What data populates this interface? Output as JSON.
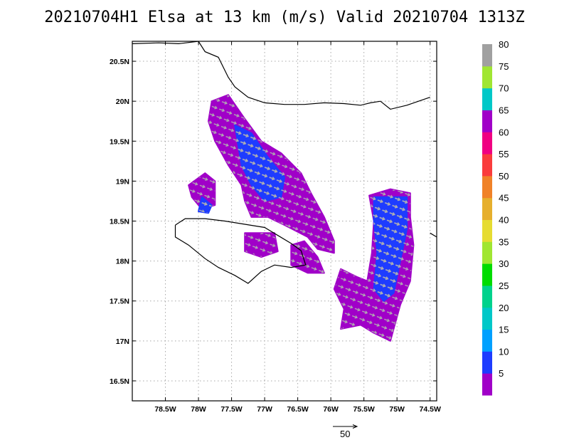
{
  "title": "20210704H1 Elsa at 13 km (m/s) Valid 20210704 1313Z",
  "map": {
    "lon_range": [
      -79.0,
      -74.4
    ],
    "lat_range": [
      16.25,
      20.75
    ],
    "lon_ticks": [
      {
        "value": -78.5,
        "label": "78.5W"
      },
      {
        "value": -78.0,
        "label": "78W"
      },
      {
        "value": -77.5,
        "label": "77.5W"
      },
      {
        "value": -77.0,
        "label": "77W"
      },
      {
        "value": -76.5,
        "label": "76.5W"
      },
      {
        "value": -76.0,
        "label": "76W"
      },
      {
        "value": -75.5,
        "label": "75.5W"
      },
      {
        "value": -75.0,
        "label": "75W"
      },
      {
        "value": -74.5,
        "label": "74.5W"
      }
    ],
    "lat_ticks": [
      {
        "value": 20.5,
        "label": "20.5N"
      },
      {
        "value": 20.0,
        "label": "20N"
      },
      {
        "value": 19.5,
        "label": "19.5N"
      },
      {
        "value": 19.0,
        "label": "19N"
      },
      {
        "value": 18.5,
        "label": "18.5N"
      },
      {
        "value": 18.0,
        "label": "18N"
      },
      {
        "value": 17.5,
        "label": "17.5N"
      },
      {
        "value": 17.0,
        "label": "17N"
      },
      {
        "value": 16.5,
        "label": "16.5N"
      }
    ],
    "grid": true,
    "coastlines": {
      "cuba": [
        [
          -79.0,
          20.72
        ],
        [
          -78.6,
          20.73
        ],
        [
          -78.3,
          20.72
        ],
        [
          -78.0,
          20.75
        ],
        [
          -77.9,
          20.62
        ],
        [
          -77.7,
          20.55
        ],
        [
          -77.55,
          20.3
        ],
        [
          -77.45,
          20.18
        ],
        [
          -77.25,
          20.05
        ],
        [
          -77.0,
          19.98
        ],
        [
          -76.7,
          19.96
        ],
        [
          -76.4,
          19.96
        ],
        [
          -76.1,
          19.98
        ],
        [
          -75.8,
          19.97
        ],
        [
          -75.55,
          19.95
        ],
        [
          -75.4,
          19.98
        ],
        [
          -75.25,
          20.0
        ],
        [
          -75.1,
          19.9
        ],
        [
          -74.85,
          19.95
        ],
        [
          -74.5,
          20.05
        ]
      ],
      "jamaica": [
        [
          -78.35,
          18.45
        ],
        [
          -78.2,
          18.53
        ],
        [
          -77.9,
          18.53
        ],
        [
          -77.6,
          18.5
        ],
        [
          -77.3,
          18.46
        ],
        [
          -77.0,
          18.42
        ],
        [
          -76.8,
          18.32
        ],
        [
          -76.6,
          18.22
        ],
        [
          -76.45,
          18.13
        ],
        [
          -76.38,
          17.95
        ],
        [
          -76.6,
          17.92
        ],
        [
          -76.85,
          17.95
        ],
        [
          -77.05,
          17.87
        ],
        [
          -77.25,
          17.72
        ],
        [
          -77.45,
          17.82
        ],
        [
          -77.7,
          17.92
        ],
        [
          -77.9,
          18.03
        ],
        [
          -78.15,
          18.2
        ],
        [
          -78.35,
          18.3
        ],
        [
          -78.35,
          18.45
        ]
      ],
      "haiti": [
        [
          -74.5,
          18.35
        ],
        [
          -74.4,
          18.3
        ]
      ]
    },
    "wind_polygons": [
      {
        "speed": 7,
        "coords": [
          [
            -77.8,
            20.0
          ],
          [
            -77.55,
            20.08
          ],
          [
            -77.3,
            19.78
          ],
          [
            -77.05,
            19.5
          ],
          [
            -76.75,
            19.35
          ],
          [
            -76.45,
            19.1
          ],
          [
            -76.3,
            18.85
          ],
          [
            -76.1,
            18.55
          ],
          [
            -75.95,
            18.25
          ],
          [
            -75.95,
            18.1
          ],
          [
            -76.2,
            18.15
          ],
          [
            -76.35,
            18.3
          ],
          [
            -76.7,
            18.45
          ],
          [
            -76.95,
            18.55
          ],
          [
            -77.2,
            18.55
          ],
          [
            -77.3,
            18.75
          ],
          [
            -77.35,
            18.95
          ],
          [
            -77.55,
            19.2
          ],
          [
            -77.75,
            19.5
          ],
          [
            -77.85,
            19.75
          ]
        ]
      },
      {
        "speed": 12,
        "coords": [
          [
            -77.45,
            19.7
          ],
          [
            -77.2,
            19.6
          ],
          [
            -76.95,
            19.3
          ],
          [
            -76.7,
            19.05
          ],
          [
            -76.75,
            18.8
          ],
          [
            -77.0,
            18.75
          ],
          [
            -77.2,
            18.95
          ],
          [
            -77.35,
            19.2
          ]
        ]
      },
      {
        "speed": 7,
        "coords": [
          [
            -76.6,
            18.2
          ],
          [
            -76.4,
            18.25
          ],
          [
            -76.2,
            18.05
          ],
          [
            -76.1,
            17.85
          ],
          [
            -76.35,
            17.85
          ],
          [
            -76.6,
            17.95
          ]
        ]
      },
      {
        "speed": 7,
        "coords": [
          [
            -77.3,
            18.35
          ],
          [
            -76.85,
            18.35
          ],
          [
            -76.8,
            18.12
          ],
          [
            -77.05,
            18.05
          ],
          [
            -77.3,
            18.12
          ]
        ]
      },
      {
        "speed": 7,
        "coords": [
          [
            -77.9,
            19.1
          ],
          [
            -77.75,
            19.0
          ],
          [
            -77.75,
            18.7
          ],
          [
            -77.95,
            18.65
          ],
          [
            -78.1,
            18.8
          ],
          [
            -78.15,
            18.95
          ]
        ]
      },
      {
        "speed": 12,
        "coords": [
          [
            -77.95,
            18.8
          ],
          [
            -77.8,
            18.7
          ],
          [
            -77.85,
            18.6
          ],
          [
            -78.0,
            18.62
          ]
        ]
      },
      {
        "speed": 7,
        "coords": [
          [
            -75.42,
            18.82
          ],
          [
            -75.1,
            18.9
          ],
          [
            -74.8,
            18.85
          ],
          [
            -74.8,
            18.55
          ],
          [
            -74.75,
            18.2
          ],
          [
            -74.8,
            17.75
          ],
          [
            -74.95,
            17.45
          ],
          [
            -75.05,
            17.15
          ],
          [
            -75.1,
            17.0
          ],
          [
            -75.35,
            17.1
          ],
          [
            -75.55,
            17.2
          ],
          [
            -75.85,
            17.15
          ],
          [
            -75.8,
            17.4
          ],
          [
            -75.95,
            17.65
          ],
          [
            -75.85,
            17.9
          ],
          [
            -75.6,
            17.8
          ],
          [
            -75.45,
            17.75
          ],
          [
            -75.38,
            18.1
          ],
          [
            -75.35,
            18.5
          ]
        ]
      },
      {
        "speed": 12,
        "coords": [
          [
            -75.35,
            18.8
          ],
          [
            -74.85,
            18.8
          ],
          [
            -74.85,
            18.4
          ],
          [
            -74.95,
            18.0
          ],
          [
            -75.05,
            17.6
          ],
          [
            -75.2,
            17.5
          ],
          [
            -75.35,
            17.65
          ],
          [
            -75.3,
            18.1
          ],
          [
            -75.35,
            18.5
          ]
        ]
      }
    ],
    "vector_scale_label": "50"
  },
  "colorbar": {
    "labels": [
      "5",
      "10",
      "15",
      "20",
      "25",
      "30",
      "35",
      "40",
      "45",
      "50",
      "55",
      "60",
      "65",
      "70",
      "75",
      "80"
    ],
    "colors": [
      "#a000c8",
      "#1e3cff",
      "#00a0ff",
      "#00c8c8",
      "#00d28c",
      "#00dc00",
      "#a0e632",
      "#e6dc32",
      "#e6af2d",
      "#f08228",
      "#fa3c3c",
      "#f00082",
      "#a000c8",
      "#00c8c8",
      "#a0e632",
      "#a0a0a0"
    ]
  }
}
